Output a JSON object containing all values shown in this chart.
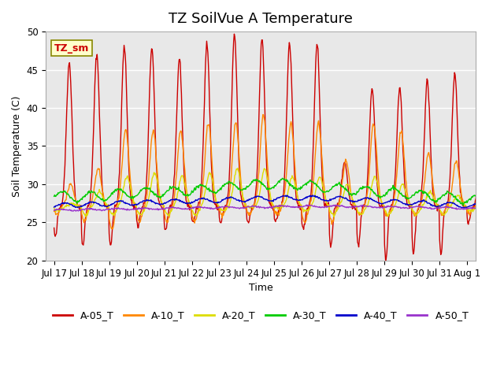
{
  "title": "TZ SoilVue A Temperature",
  "ylabel": "Soil Temperature (C)",
  "xlabel": "Time",
  "ylim": [
    20,
    50
  ],
  "bg_color": "#e8e8e8",
  "fig_color": "#ffffff",
  "annotation_label": "TZ_sm",
  "series_colors": {
    "A-05_T": "#cc0000",
    "A-10_T": "#ff8800",
    "A-20_T": "#dddd00",
    "A-30_T": "#00cc00",
    "A-40_T": "#0000cc",
    "A-50_T": "#9933cc"
  },
  "xtick_labels": [
    "Jul 17",
    "Jul 18",
    "Jul 19",
    "Jul 20",
    "Jul 21",
    "Jul 22",
    "Jul 23",
    "Jul 24",
    "Jul 25",
    "Jul 26",
    "Jul 27",
    "Jul 28",
    "Jul 29",
    "Jul 30",
    "Jul 31",
    "Aug 1"
  ],
  "ytick_labels": [
    "20",
    "25",
    "30",
    "35",
    "40",
    "45",
    "50"
  ],
  "yticks": [
    20,
    25,
    30,
    35,
    40,
    45,
    50
  ],
  "grid_color": "#ffffff",
  "title_fontsize": 13,
  "axis_fontsize": 9,
  "tick_fontsize": 8.5,
  "legend_fontsize": 9
}
